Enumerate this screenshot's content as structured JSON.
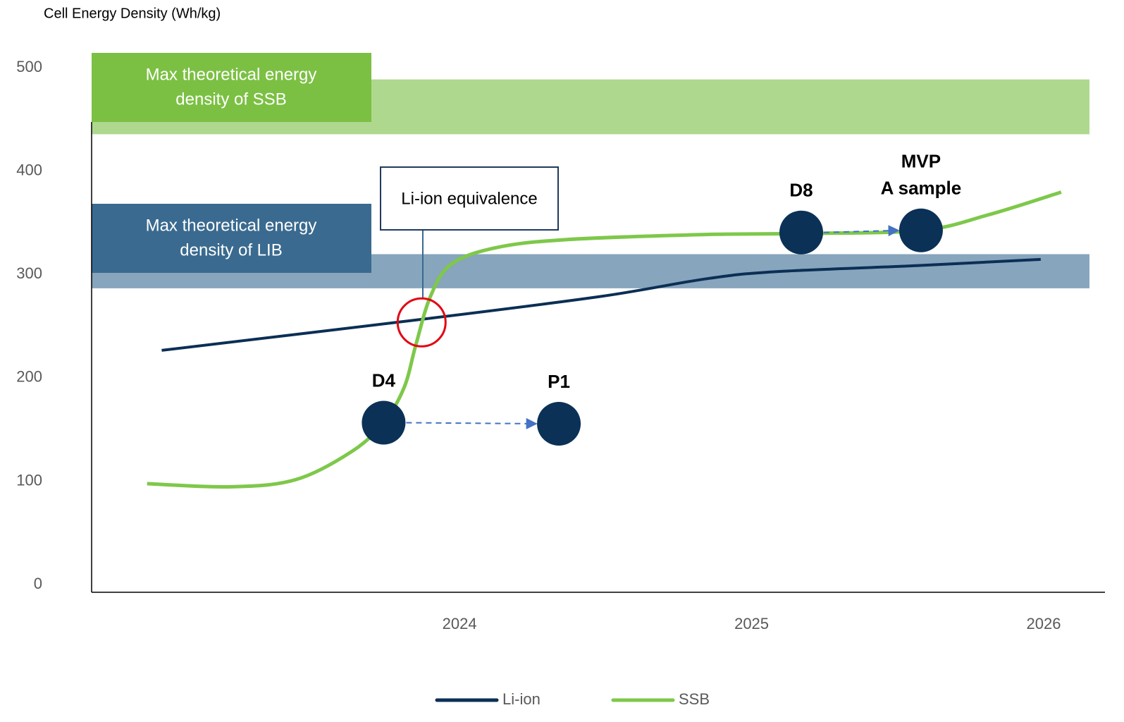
{
  "chart_data": {
    "type": "line",
    "y_axis_label": "Cell Energy Density (Wh/kg)",
    "xlim": [
      2022.74,
      2026.21
    ],
    "xticks": [
      2024,
      2025,
      2026
    ],
    "ylim": [
      -6,
      500
    ],
    "yticks": [
      0,
      100,
      200,
      300,
      400,
      500
    ],
    "series": [
      {
        "name": "Li-ion",
        "color": "#0b2f55",
        "x": [
          2022.98,
          2023.87,
          2024.48,
          2024.84,
          2025.08,
          2025.57,
          2025.99
        ],
        "values": [
          228,
          258,
          280,
          297,
          304,
          310,
          316
        ]
      },
      {
        "name": "SSB",
        "color": "#7ec84a",
        "x": [
          2022.93,
          2023.22,
          2023.44,
          2023.63,
          2023.74,
          2023.81,
          2023.85,
          2023.9,
          2023.97,
          2024.12,
          2024.36,
          2024.84,
          2025.17,
          2025.58,
          2025.81,
          2026.06
        ],
        "values": [
          99,
          96,
          103,
          130,
          158,
          192,
          233,
          280,
          311,
          327,
          335,
          340,
          341,
          344,
          359,
          381
        ]
      }
    ],
    "bands": [
      {
        "label": [
          "Max theoretical energy",
          "density of SSB"
        ],
        "range": [
          437,
          490
        ],
        "color": "#aed88e",
        "label_color": "#7bc043"
      },
      {
        "label": [
          "Max theoretical energy",
          "density of LIB"
        ],
        "range": [
          288,
          321
        ],
        "color": "#87a5bc",
        "label_color": "#3a6a8f"
      }
    ],
    "equivalence": {
      "label": "Li-ion equivalence",
      "x": 2023.87,
      "y": 255
    },
    "milestones": [
      {
        "label": [
          "D4"
        ],
        "x": 2023.74,
        "y": 158
      },
      {
        "label": [
          "P1"
        ],
        "x": 2024.34,
        "y": 157
      },
      {
        "label": [
          "D8"
        ],
        "x": 2025.17,
        "y": 342
      },
      {
        "label": [
          "MVP",
          "A sample"
        ],
        "x": 2025.58,
        "y": 344
      }
    ]
  }
}
